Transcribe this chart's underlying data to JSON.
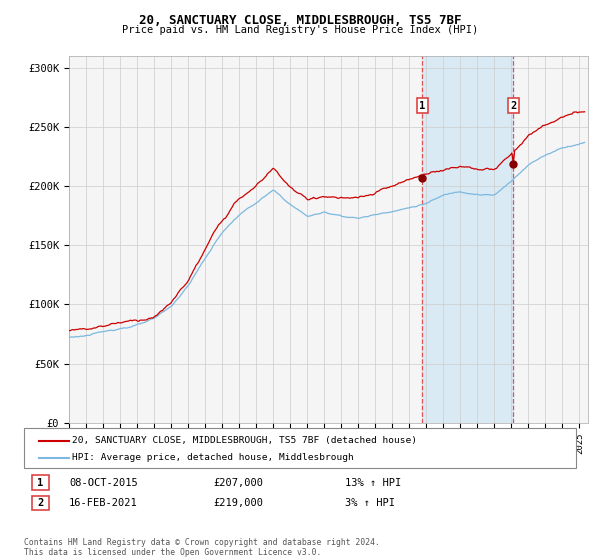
{
  "title1": "20, SANCTUARY CLOSE, MIDDLESBROUGH, TS5 7BF",
  "title2": "Price paid vs. HM Land Registry's House Price Index (HPI)",
  "ylabel_ticks": [
    "£0",
    "£50K",
    "£100K",
    "£150K",
    "£200K",
    "£250K",
    "£300K"
  ],
  "ytick_values": [
    0,
    50000,
    100000,
    150000,
    200000,
    250000,
    300000
  ],
  "ylim": [
    0,
    310000
  ],
  "xlim_start": 1995.0,
  "xlim_end": 2025.5,
  "hpi_color": "#7cb8e0",
  "price_color": "#cc0000",
  "shaded_region_color": "#daeaf5",
  "highlight_dashed_color": "#dd4444",
  "marker1_x": 2015.77,
  "marker2_x": 2021.12,
  "marker1_price": 207000,
  "marker2_price": 219000,
  "legend_label1": "20, SANCTUARY CLOSE, MIDDLESBROUGH, TS5 7BF (detached house)",
  "legend_label2": "HPI: Average price, detached house, Middlesbrough",
  "annotation1_date": "08-OCT-2015",
  "annotation1_price": "£207,000",
  "annotation1_hpi": "13% ↑ HPI",
  "annotation2_date": "16-FEB-2021",
  "annotation2_price": "£219,000",
  "annotation2_hpi": "3% ↑ HPI",
  "footnote": "Contains HM Land Registry data © Crown copyright and database right 2024.\nThis data is licensed under the Open Government Licence v3.0.",
  "background_color": "#ffffff",
  "plot_bg_color": "#f5f5f5",
  "hpi_base_points_x": [
    1995,
    1996,
    1997,
    1998,
    1999,
    2000,
    2001,
    2002,
    2003,
    2004,
    2005,
    2006,
    2007,
    2008,
    2009,
    2010,
    2011,
    2012,
    2013,
    2014,
    2015,
    2016,
    2017,
    2018,
    2019,
    2020,
    2021,
    2022,
    2023,
    2024,
    2025.3
  ],
  "hpi_base_points_y": [
    72000,
    74000,
    76000,
    80000,
    83000,
    87000,
    97000,
    115000,
    138000,
    160000,
    175000,
    185000,
    195000,
    183000,
    173000,
    176000,
    174000,
    172000,
    175000,
    179000,
    182000,
    186000,
    192000,
    196000,
    195000,
    194000,
    205000,
    220000,
    228000,
    235000,
    240000
  ],
  "price_base_points_x": [
    1995,
    1996,
    1997,
    1998,
    1999,
    2000,
    2001,
    2002,
    2003,
    2004,
    2005,
    2006,
    2007,
    2008,
    2009,
    2010,
    2011,
    2012,
    2013,
    2014,
    2015,
    2016,
    2017,
    2018,
    2019,
    2020,
    2021,
    2022,
    2023,
    2024,
    2025.3
  ],
  "price_base_points_y": [
    78000,
    80000,
    83000,
    87000,
    89000,
    93000,
    104000,
    123000,
    148000,
    172000,
    190000,
    200000,
    215000,
    200000,
    188000,
    192000,
    190000,
    188000,
    191000,
    196000,
    200000,
    205000,
    210000,
    213000,
    212000,
    210000,
    222000,
    238000,
    245000,
    252000,
    255000
  ],
  "noise_seed": 123,
  "n_points": 370
}
